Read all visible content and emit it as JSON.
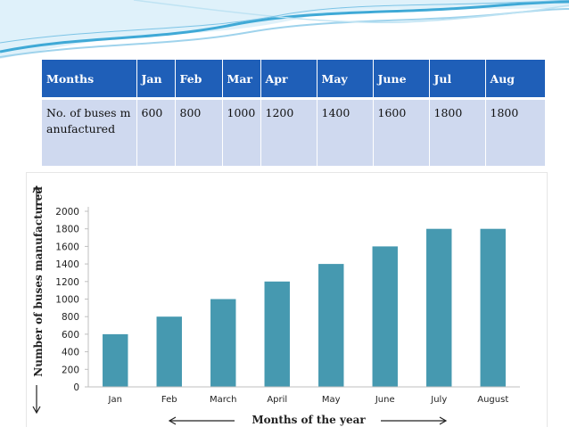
{
  "colors": {
    "header_bg": "#1f5fb8",
    "row_bg": "#cfd9ef",
    "bar": "#4699b0",
    "wave": "#3fa9d6"
  },
  "table": {
    "headers": [
      "Months",
      "Jan",
      "Feb",
      "Mar",
      "Apr",
      "May",
      "June",
      "Jul",
      "Aug"
    ],
    "row": [
      "No. of buses manufactured",
      "600",
      "800",
      "1000",
      "1200",
      "1400",
      "1600",
      "1800",
      "1800"
    ]
  },
  "chart_data": {
    "type": "bar",
    "categories": [
      "Jan",
      "Feb",
      "March",
      "April",
      "May",
      "June",
      "July",
      "August"
    ],
    "values": [
      600,
      800,
      1000,
      1200,
      1400,
      1600,
      1800,
      1800
    ],
    "title": "",
    "xlabel": "Months of the year",
    "ylabel": "Number of buses manufactured",
    "ylim": [
      0,
      2000
    ],
    "yticks": [
      0,
      200,
      400,
      600,
      800,
      1000,
      1200,
      1400,
      1600,
      1800,
      2000
    ],
    "grid": false,
    "legend": "none"
  }
}
